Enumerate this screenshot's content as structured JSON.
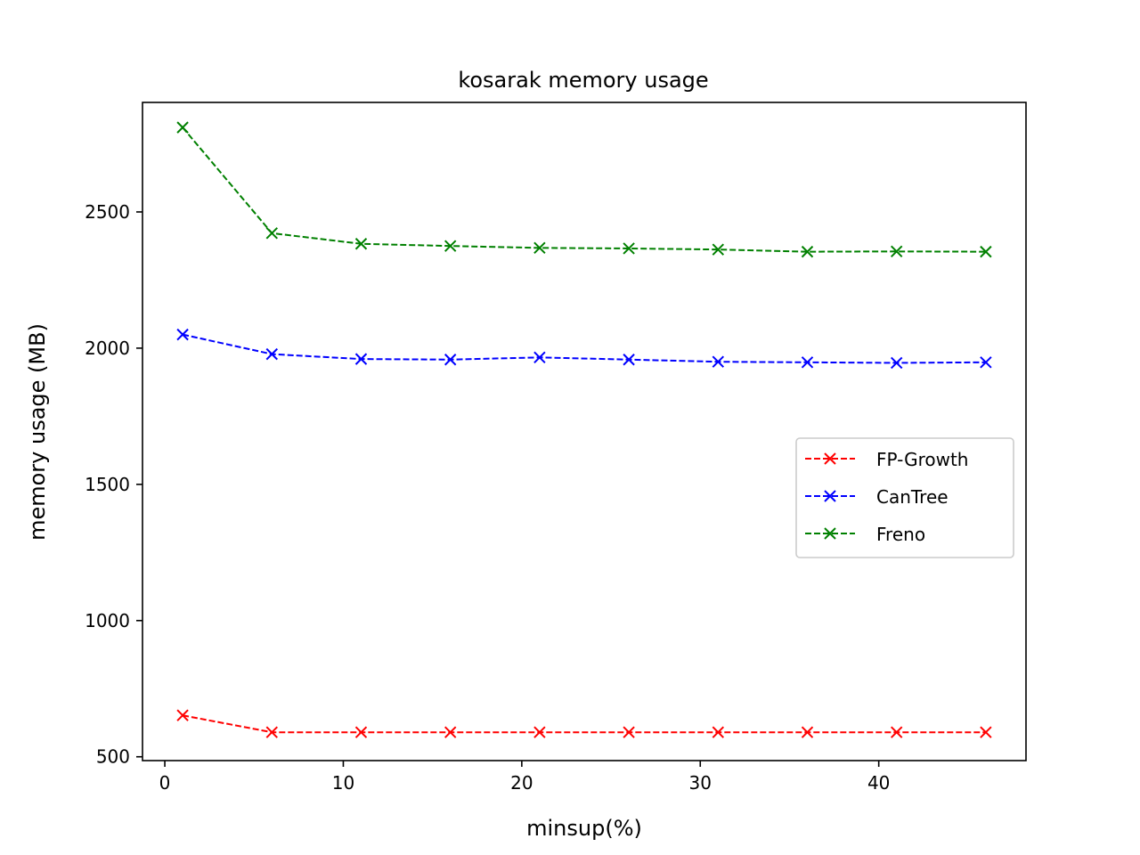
{
  "chart_data": {
    "type": "line",
    "title": "kosarak memory usage",
    "xlabel": "minsup(%)",
    "ylabel": "memory usage (MB)",
    "xlim": [
      -1.25,
      48.25
    ],
    "ylim": [
      486,
      2902
    ],
    "xticks": [
      0,
      10,
      20,
      30,
      40
    ],
    "yticks": [
      500,
      1000,
      1500,
      2000,
      2500
    ],
    "grid": false,
    "legend_position": "center-right",
    "x": [
      1,
      6,
      11,
      16,
      21,
      26,
      31,
      36,
      41,
      46
    ],
    "series": [
      {
        "name": "FP-Growth",
        "color": "#ff0000",
        "line_style": "dashed",
        "marker": "x",
        "values": [
          652,
          590,
          590,
          590,
          590,
          590,
          590,
          590,
          590,
          590
        ]
      },
      {
        "name": "CanTree",
        "color": "#0000ff",
        "line_style": "dashed",
        "marker": "x",
        "values": [
          2050,
          1978,
          1960,
          1958,
          1966,
          1958,
          1950,
          1948,
          1946,
          1948
        ]
      },
      {
        "name": "Freno",
        "color": "#008000",
        "line_style": "dashed",
        "marker": "x",
        "values": [
          2810,
          2422,
          2383,
          2375,
          2368,
          2366,
          2362,
          2354,
          2355,
          2354
        ]
      }
    ]
  }
}
